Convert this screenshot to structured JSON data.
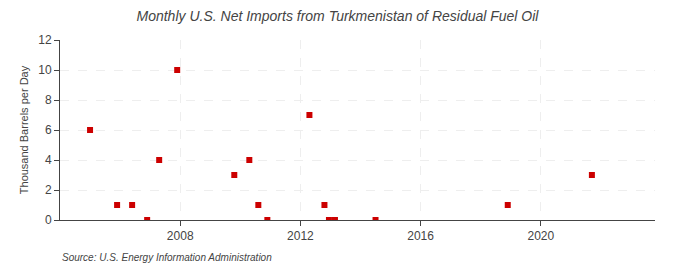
{
  "chart_data": {
    "type": "scatter",
    "title": "Monthly U.S. Net Imports from Turkmenistan of Residual Fuel Oil",
    "ylabel": "Thousand Barrels per Day",
    "annotations": [
      "Source: U.S. Energy Information Administration"
    ],
    "x": [
      2005.0,
      2005.9,
      2006.4,
      2006.9,
      2007.3,
      2007.9,
      2009.8,
      2010.3,
      2010.6,
      2010.9,
      2012.3,
      2012.8,
      2012.95,
      2013.15,
      2014.5,
      2018.9,
      2021.7
    ],
    "values": [
      6,
      1,
      1,
      0,
      4,
      10,
      3,
      4,
      1,
      0,
      7,
      1,
      0,
      0,
      0,
      1,
      3
    ],
    "color": "#cc0000",
    "marker": "square",
    "xlim": [
      2004.0,
      2023.8
    ],
    "ylim": [
      0,
      12
    ],
    "xticks": [
      2008,
      2012,
      2016,
      2020
    ],
    "yticks": [
      0,
      2,
      4,
      6,
      8,
      10,
      12
    ],
    "grid": true
  }
}
